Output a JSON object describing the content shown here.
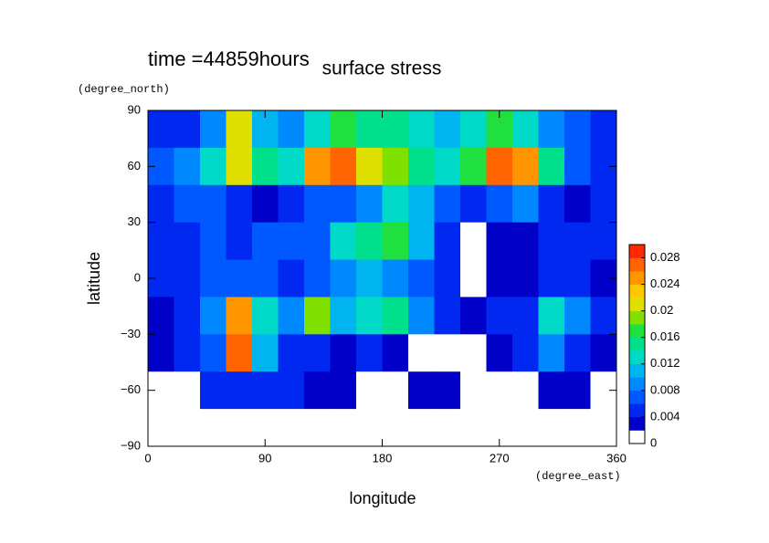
{
  "chart_data": {
    "type": "contour",
    "title": "surface stress",
    "subtitle": "time =44859hours",
    "x_label": "longitude",
    "y_label": "latitude",
    "x_unit": "(degree_east)",
    "y_unit": "(degree_north)",
    "xlim": [
      0,
      360
    ],
    "ylim": [
      -90,
      90
    ],
    "xticks": [
      0,
      90,
      180,
      270,
      360
    ],
    "yticks": [
      {
        "value": -90,
        "label": "−90"
      },
      {
        "value": -60,
        "label": "−60"
      },
      {
        "value": -30,
        "label": "−30"
      },
      0,
      30,
      60,
      90
    ],
    "x": [
      10,
      30,
      50,
      70,
      90,
      110,
      130,
      150,
      170,
      190,
      210,
      230,
      250,
      270,
      290,
      310,
      330,
      350
    ],
    "y": [
      80,
      60,
      40,
      20,
      0,
      -20,
      -40,
      -60,
      -80
    ],
    "z": [
      [
        0.004,
        0.005,
        0.008,
        0.02,
        0.01,
        0.008,
        0.012,
        0.016,
        0.014,
        0.014,
        0.012,
        0.01,
        0.012,
        0.016,
        0.012,
        0.008,
        0.006,
        0.004
      ],
      [
        0.006,
        0.008,
        0.012,
        0.02,
        0.014,
        0.012,
        0.024,
        0.026,
        0.02,
        0.018,
        0.014,
        0.012,
        0.016,
        0.026,
        0.024,
        0.014,
        0.006,
        0.004
      ],
      [
        0.005,
        0.006,
        0.007,
        0.005,
        0.003,
        0.004,
        0.006,
        0.007,
        0.008,
        0.012,
        0.01,
        0.006,
        0.005,
        0.006,
        0.008,
        0.005,
        0.003,
        0.004
      ],
      [
        0.004,
        0.005,
        0.006,
        0.005,
        0.006,
        0.006,
        0.007,
        0.012,
        0.014,
        0.016,
        0.01,
        0.005,
        0.001,
        0.003,
        0.002,
        0.004,
        0.005,
        0.004
      ],
      [
        0.005,
        0.004,
        0.006,
        0.007,
        0.006,
        0.005,
        0.006,
        0.008,
        0.01,
        0.008,
        0.006,
        0.004,
        0.001,
        0.003,
        0.002,
        0.005,
        0.004,
        0.003
      ],
      [
        0.003,
        0.005,
        0.008,
        0.024,
        0.012,
        0.008,
        0.018,
        0.01,
        0.012,
        0.014,
        0.008,
        0.004,
        0.002,
        0.005,
        0.004,
        0.012,
        0.008,
        0.005
      ],
      [
        0.003,
        0.004,
        0.006,
        0.026,
        0.01,
        0.005,
        0.004,
        0.003,
        0.004,
        0.003,
        0.001,
        0.001,
        0.001,
        0.003,
        0.004,
        0.008,
        0.005,
        0.003
      ],
      [
        0.001,
        0.001,
        0.004,
        0.005,
        0.004,
        0.004,
        0.003,
        0.002,
        0.001,
        0.001,
        0.002,
        0.003,
        0.001,
        0.001,
        0.001,
        0.003,
        0.002,
        0.001
      ],
      [
        0,
        0,
        0,
        0,
        0,
        0,
        0,
        0,
        0,
        0,
        0,
        0,
        0,
        0,
        0,
        0,
        0,
        0
      ]
    ],
    "levels": [
      0,
      0.002,
      0.004,
      0.006,
      0.008,
      0.01,
      0.012,
      0.014,
      0.016,
      0.018,
      0.02,
      0.022,
      0.024,
      0.026,
      0.028,
      0.03
    ],
    "colors": [
      "#ffffff",
      "#0000c8",
      "#0028f0",
      "#0058ff",
      "#0088ff",
      "#00b4f0",
      "#00d8c8",
      "#00e08c",
      "#20e040",
      "#80e000",
      "#e0e000",
      "#ffc800",
      "#ff9600",
      "#ff6400",
      "#ff2800"
    ],
    "colorbar_lim": [
      0,
      0.03
    ],
    "colorbar_ticks": [
      0,
      0.004,
      0.008,
      0.012,
      0.016,
      0.02,
      0.024,
      0.028
    ]
  }
}
